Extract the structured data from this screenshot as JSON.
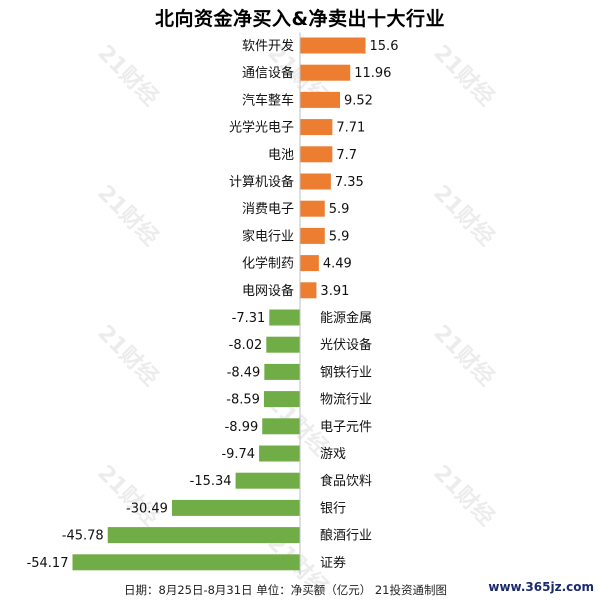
{
  "chart_data": {
    "type": "bar",
    "orientation": "horizontal",
    "title": "北向资金净买入&净卖出十大行业",
    "categories": [
      "软件开发",
      "通信设备",
      "汽车整车",
      "光学光电子",
      "电池",
      "计算机设备",
      "消费电子",
      "家电行业",
      "化学制药",
      "电网设备",
      "能源金属",
      "光伏设备",
      "钢铁行业",
      "物流行业",
      "电子元件",
      "游戏",
      "食品饮料",
      "银行",
      "酿酒行业",
      "证券"
    ],
    "values": [
      15.6,
      11.96,
      9.52,
      7.71,
      7.7,
      7.35,
      5.9,
      5.9,
      4.49,
      3.91,
      -7.31,
      -8.02,
      -8.49,
      -8.59,
      -8.99,
      -9.74,
      -15.34,
      -30.49,
      -45.78,
      -54.17
    ],
    "value_labels": [
      "15.6",
      "11.96",
      "9.52",
      "7.71",
      "7.7",
      "7.35",
      "5.9",
      "5.9",
      "4.49",
      "3.91",
      "-7.31",
      "-8.02",
      "-8.49",
      "-8.59",
      "-8.99",
      "-9.74",
      "-15.34",
      "-30.49",
      "-45.78",
      "-54.17"
    ],
    "colors": {
      "positive": "#ed7d31",
      "negative": "#70ad47"
    },
    "grid": false,
    "legend": "none"
  },
  "footer": "日期：8月25日-8月31日  单位：净买额（亿元）  21投资通制图",
  "source": "www.365jz.com",
  "watermark": "21财经"
}
